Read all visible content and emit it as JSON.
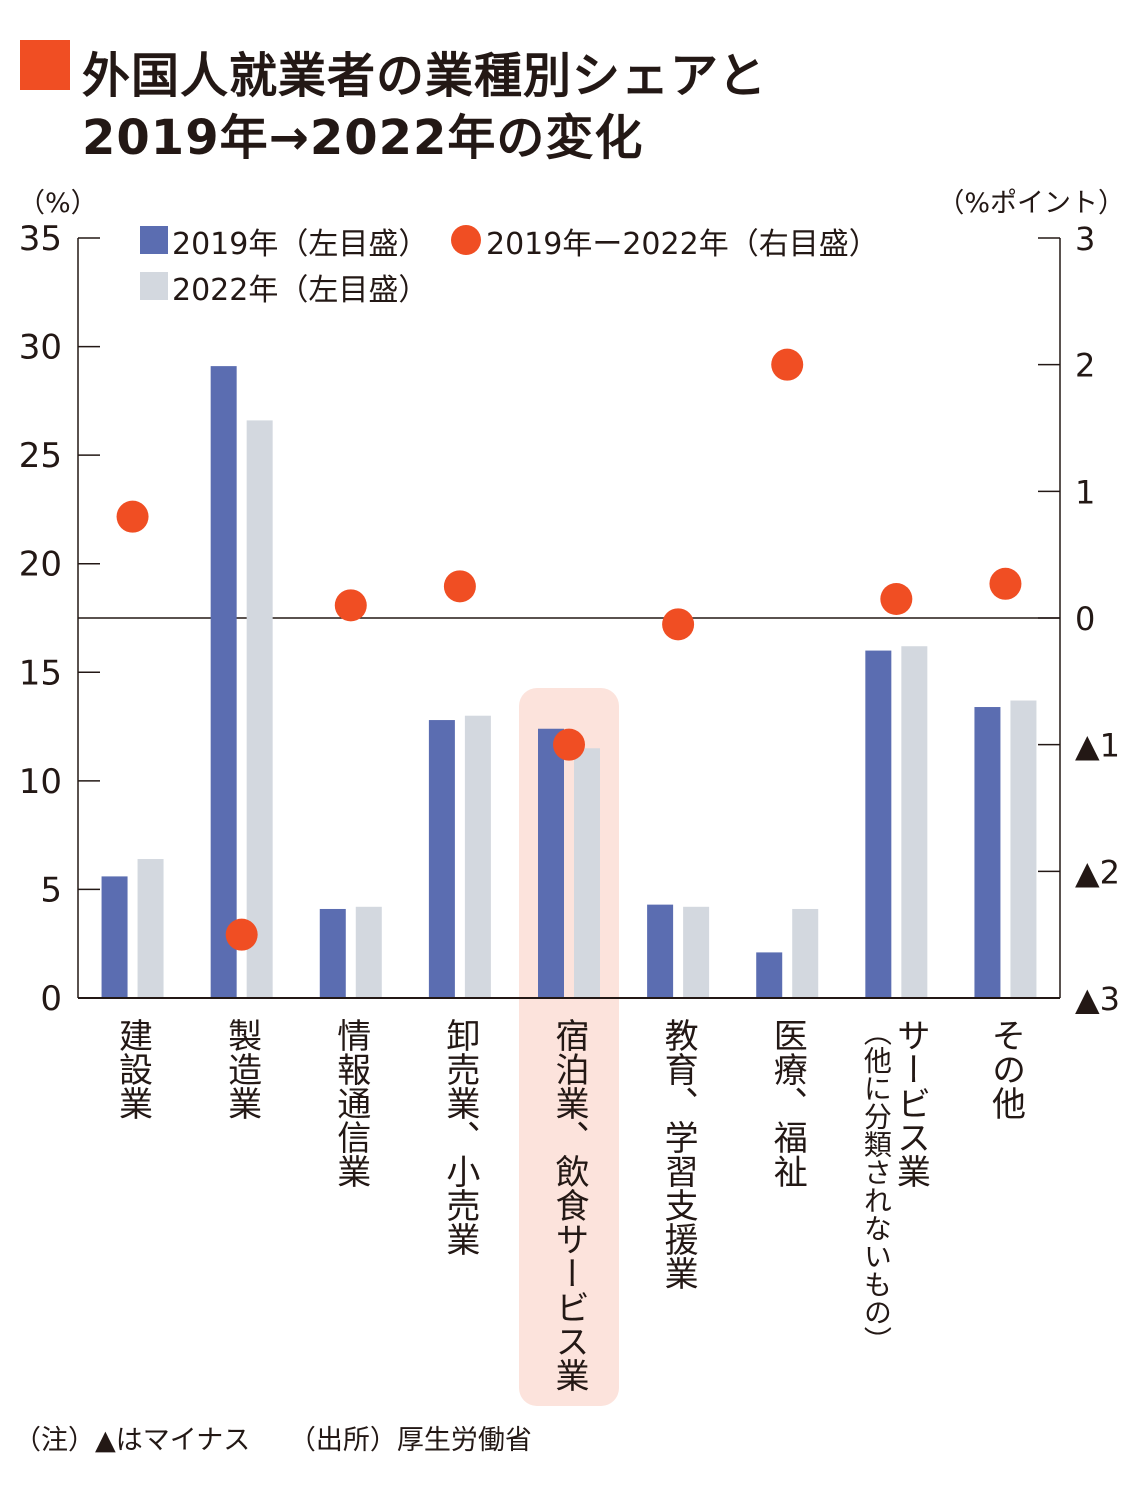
{
  "title": {
    "line1": "外国人就業者の業種別シェアと",
    "line2": "2019年→2022年の変化"
  },
  "colors": {
    "title_square": "#f04e23",
    "bar_2019": "#5b6db1",
    "bar_2022": "#d3d8df",
    "dot": "#f04e23",
    "highlight": "#fce3dc"
  },
  "chart_data": {
    "type": "bar",
    "left_axis_unit": "（%）",
    "right_axis_unit": "（%ポイント）",
    "left_ylim": [
      0,
      35
    ],
    "left_ticks": [
      "0",
      "5",
      "10",
      "15",
      "20",
      "25",
      "30",
      "35"
    ],
    "right_ylim": [
      -3,
      3
    ],
    "right_ticks": [
      "▲3",
      "▲2",
      "▲1",
      "0",
      "1",
      "2",
      "3"
    ],
    "categories": [
      "建設業",
      "製造業",
      "情報通信業",
      "卸売業、小売業",
      "宿泊業、飲食サービス業",
      "教育、学習支援業",
      "医療、福祉",
      "サービス業",
      "その他"
    ],
    "category_sublabels": [
      "",
      "",
      "",
      "",
      "",
      "",
      "",
      "（他に分類されないもの）",
      ""
    ],
    "highlight_category": "宿泊業、飲食サービス業",
    "series": [
      {
        "name": "2019年（左目盛）",
        "axis": "left",
        "kind": "bar",
        "values": [
          5.6,
          29.1,
          4.1,
          12.8,
          12.4,
          4.3,
          2.1,
          16.0,
          13.4
        ]
      },
      {
        "name": "2022年（左目盛）",
        "axis": "left",
        "kind": "bar",
        "values": [
          6.4,
          26.6,
          4.2,
          13.0,
          11.5,
          4.2,
          4.1,
          16.2,
          13.7
        ]
      },
      {
        "name": "2019年ー2022年（右目盛）",
        "axis": "right",
        "kind": "dot",
        "values": [
          0.8,
          -2.5,
          0.1,
          0.25,
          -1.0,
          -0.05,
          2.0,
          0.15,
          0.27
        ]
      }
    ],
    "legend_position": "top-left"
  },
  "note": {
    "note": "（注）▲はマイナス",
    "source": "（出所）厚生労働省"
  }
}
